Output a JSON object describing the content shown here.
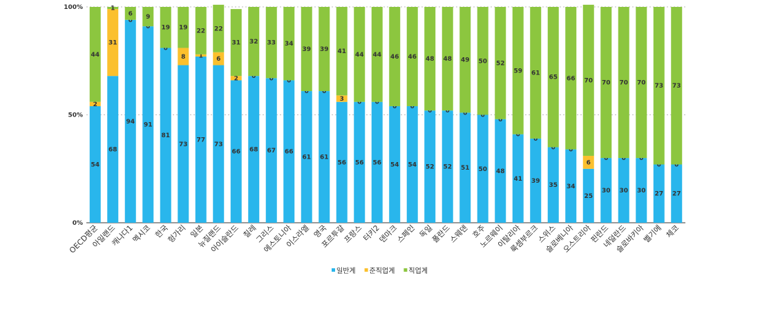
{
  "chart_data": {
    "type": "stacked_bar",
    "categories": [
      "OECD평균",
      "아일랜드",
      "캐나다1",
      "멕시코",
      "한국",
      "헝가리",
      "일본",
      "뉴질랜드",
      "아이슬란드",
      "칠레",
      "그리스",
      "에스토니아",
      "이스라엘",
      "영국",
      "포르투갈",
      "프랑스",
      "터키2",
      "덴마크",
      "스페인",
      "독일",
      "폴란드",
      "스웨덴",
      "호주",
      "노르웨이",
      "이탈리아",
      "룩셈부르크",
      "스위스",
      "슬로베니아",
      "오스트리아",
      "핀란드",
      "네덜란드",
      "슬로바키아",
      "벨기에",
      "체코"
    ],
    "series": [
      {
        "name": "일반계",
        "color": "#29b6ec",
        "values": [
          54,
          68,
          94,
          91,
          81,
          73,
          77,
          73,
          66,
          68,
          67,
          66,
          61,
          61,
          56,
          56,
          56,
          54,
          54,
          52,
          52,
          51,
          50,
          48,
          41,
          39,
          35,
          34,
          25,
          30,
          30,
          30,
          27,
          27
        ]
      },
      {
        "name": "준직업계",
        "color": "#fbc02d",
        "values": [
          2,
          31,
          0,
          0,
          0,
          8,
          1,
          6,
          2,
          0,
          0,
          0,
          0,
          0,
          3,
          0,
          0,
          0,
          0,
          0,
          0,
          0,
          0,
          0,
          0,
          0,
          0,
          0,
          6,
          0,
          0,
          0,
          0,
          0
        ]
      },
      {
        "name": "직업계",
        "color": "#8cc63f",
        "values": [
          44,
          1,
          6,
          9,
          19,
          19,
          22,
          22,
          31,
          32,
          33,
          34,
          39,
          39,
          41,
          44,
          44,
          46,
          46,
          48,
          48,
          49,
          50,
          52,
          59,
          61,
          65,
          66,
          70,
          70,
          70,
          70,
          73,
          73
        ]
      }
    ],
    "ylim": [
      0,
      100
    ],
    "yticks": [
      {
        "value": 0,
        "label": "0%"
      },
      {
        "value": 50,
        "label": "50%"
      },
      {
        "value": 100,
        "label": "100%"
      }
    ],
    "grid": true
  }
}
